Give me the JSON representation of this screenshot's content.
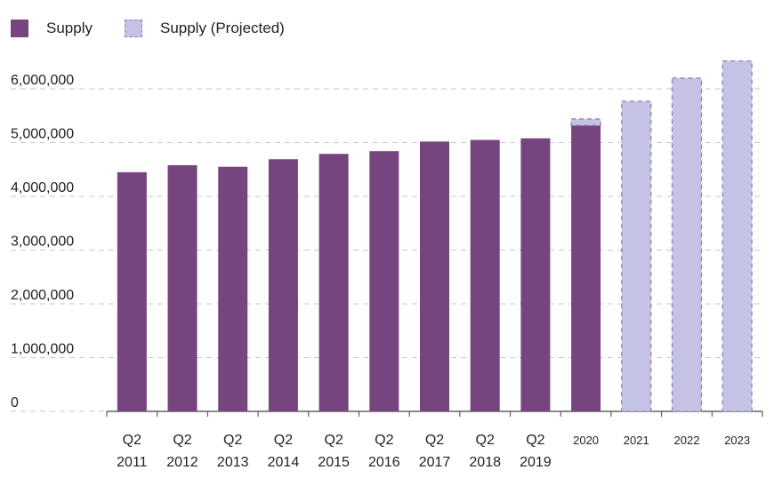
{
  "legend": {
    "supply_label": "Supply",
    "projected_label": "Supply (Projected)"
  },
  "colors": {
    "actual": "#76457f",
    "projected_fill": "#c5c3e5",
    "projected_border": "#8e7ca7",
    "grid": "#c9c9c9",
    "axis": "#444444",
    "text": "#222222"
  },
  "chart_data": {
    "type": "bar",
    "title": "",
    "xlabel": "",
    "ylabel": "",
    "ylim": [
      0,
      6500000
    ],
    "yticks": [
      0,
      1000000,
      2000000,
      3000000,
      4000000,
      5000000,
      6000000
    ],
    "ytick_labels": [
      "0",
      "1,000,000",
      "2,000,000",
      "3,000,000",
      "4,000,000",
      "5,000,000",
      "6,000,000"
    ],
    "grid": true,
    "legend_position": "top-left",
    "stacked": true,
    "categories": [
      "Q2 2011",
      "Q2 2012",
      "Q2 2013",
      "Q2 2014",
      "Q2 2015",
      "Q2 2016",
      "Q2 2017",
      "Q2 2018",
      "Q2 2019",
      "2020",
      "2021",
      "2022",
      "2023"
    ],
    "category_labels": [
      [
        "Q2",
        "2011"
      ],
      [
        "Q2",
        "2012"
      ],
      [
        "Q2",
        "2013"
      ],
      [
        "Q2",
        "2014"
      ],
      [
        "Q2",
        "2015"
      ],
      [
        "Q2",
        "2016"
      ],
      [
        "Q2",
        "2017"
      ],
      [
        "Q2",
        "2018"
      ],
      [
        "Q2",
        "2019"
      ],
      [
        "2020"
      ],
      [
        "2021"
      ],
      [
        "2022"
      ],
      [
        "2023"
      ]
    ],
    "series": [
      {
        "name": "Supply",
        "values": [
          4450000,
          4580000,
          4550000,
          4690000,
          4790000,
          4840000,
          5020000,
          5050000,
          5080000,
          5320000,
          0,
          0,
          0
        ]
      },
      {
        "name": "Supply (Projected)",
        "values": [
          0,
          0,
          0,
          0,
          0,
          0,
          0,
          0,
          0,
          120000,
          5770000,
          6200000,
          6520000
        ]
      }
    ]
  }
}
